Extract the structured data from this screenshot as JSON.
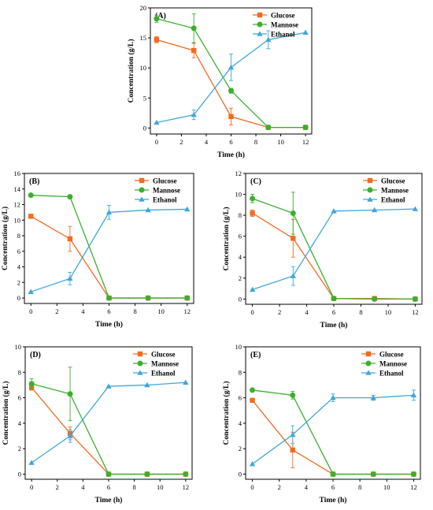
{
  "chart_data": [
    {
      "type": "line",
      "panel_label": "(A)",
      "xlabel": "Time (h)",
      "ylabel": "Concentration (g/L)",
      "xlim": [
        -0.5,
        12.5
      ],
      "ylim": [
        -1,
        20
      ],
      "xticks": [
        0,
        2,
        4,
        6,
        8,
        10,
        12
      ],
      "yticks": [
        0,
        5,
        10,
        15,
        20
      ],
      "legend": "top-right",
      "x": [
        0,
        3,
        6,
        9,
        12
      ],
      "series": [
        {
          "name": "Glucose",
          "color": "#f26b21",
          "marker": "square",
          "values": [
            14.7,
            12.9,
            1.9,
            0.1,
            0.1
          ],
          "errors": [
            0.5,
            1.2,
            1.4,
            0.1,
            0.1
          ]
        },
        {
          "name": "Mannose",
          "color": "#3ab02d",
          "marker": "circle",
          "values": [
            18.2,
            16.6,
            6.2,
            0.1,
            0.1
          ],
          "errors": [
            0.6,
            2.4,
            0.4,
            0.1,
            0.1
          ]
        },
        {
          "name": "Ethanol",
          "color": "#3ea7dc",
          "marker": "triangle",
          "values": [
            0.9,
            2.2,
            10.1,
            14.7,
            15.9
          ],
          "errors": [
            0.1,
            0.8,
            2.2,
            1.5,
            0.1
          ]
        }
      ]
    },
    {
      "type": "line",
      "panel_label": "(B)",
      "xlabel": "Time (h)",
      "ylabel": "Concentration (g/L)",
      "xlim": [
        -0.5,
        12.5
      ],
      "ylim": [
        -0.7,
        16
      ],
      "xticks": [
        0,
        2,
        4,
        6,
        8,
        10,
        12
      ],
      "yticks": [
        0,
        2,
        4,
        6,
        8,
        10,
        12,
        14,
        16
      ],
      "legend": "top-right",
      "x": [
        0,
        3,
        6,
        9,
        12
      ],
      "series": [
        {
          "name": "Glucose",
          "color": "#f26b21",
          "marker": "square",
          "values": [
            10.5,
            7.6,
            0.0,
            0.0,
            0.0
          ],
          "errors": [
            0.1,
            1.6,
            0.1,
            0.1,
            0.1
          ]
        },
        {
          "name": "Mannose",
          "color": "#3ab02d",
          "marker": "circle",
          "values": [
            13.2,
            13.0,
            0.0,
            0.0,
            0.0
          ],
          "errors": [
            0.1,
            0.1,
            0.1,
            0.1,
            0.1
          ]
        },
        {
          "name": "Ethanol",
          "color": "#3ea7dc",
          "marker": "triangle",
          "values": [
            0.8,
            2.5,
            11.0,
            11.3,
            11.4
          ],
          "errors": [
            0.1,
            0.8,
            0.9,
            0.1,
            0.1
          ]
        }
      ]
    },
    {
      "type": "line",
      "panel_label": "(C)",
      "xlabel": "Time (h)",
      "ylabel": "Concentration (g/L)",
      "xlim": [
        -0.5,
        12.5
      ],
      "ylim": [
        -0.5,
        12
      ],
      "xticks": [
        0,
        2,
        4,
        6,
        8,
        10,
        12
      ],
      "yticks": [
        0,
        2,
        4,
        6,
        8,
        10,
        12
      ],
      "legend": "top-right",
      "x": [
        0,
        3,
        6,
        9,
        12
      ],
      "series": [
        {
          "name": "Glucose",
          "color": "#f26b21",
          "marker": "square",
          "values": [
            8.2,
            5.8,
            0.05,
            0.05,
            0.0
          ],
          "errors": [
            0.3,
            1.8,
            0.1,
            0.1,
            0.05
          ]
        },
        {
          "name": "Mannose",
          "color": "#3ab02d",
          "marker": "circle",
          "values": [
            9.6,
            8.2,
            0.05,
            0.0,
            0.0
          ],
          "errors": [
            0.4,
            2.0,
            0.1,
            0.05,
            0.05
          ]
        },
        {
          "name": "Ethanol",
          "color": "#3ea7dc",
          "marker": "triangle",
          "values": [
            0.9,
            2.2,
            8.4,
            8.5,
            8.6
          ],
          "errors": [
            0.05,
            0.9,
            0.05,
            0.05,
            0.05
          ]
        }
      ]
    },
    {
      "type": "line",
      "panel_label": "(D)",
      "xlabel": "Time (h)",
      "ylabel": "Concentration (g/L)",
      "xlim": [
        -0.5,
        12.5
      ],
      "ylim": [
        -0.4,
        10
      ],
      "xticks": [
        0,
        2,
        4,
        6,
        8,
        10,
        12
      ],
      "yticks": [
        0,
        2,
        4,
        6,
        8,
        10
      ],
      "legend": "top-right",
      "x": [
        0,
        3,
        6,
        9,
        12
      ],
      "series": [
        {
          "name": "Glucose",
          "color": "#f26b21",
          "marker": "square",
          "values": [
            6.8,
            3.2,
            0.0,
            0.0,
            0.0
          ],
          "errors": [
            0.2,
            0.5,
            0.05,
            0.05,
            0.05
          ]
        },
        {
          "name": "Mannose",
          "color": "#3ab02d",
          "marker": "circle",
          "values": [
            7.1,
            6.3,
            0.0,
            0.0,
            0.0
          ],
          "errors": [
            0.4,
            2.1,
            0.05,
            0.05,
            0.05
          ]
        },
        {
          "name": "Ethanol",
          "color": "#3ea7dc",
          "marker": "triangle",
          "values": [
            0.9,
            3.0,
            6.9,
            7.0,
            7.2
          ],
          "errors": [
            0.05,
            0.5,
            0.05,
            0.05,
            0.05
          ]
        }
      ]
    },
    {
      "type": "line",
      "panel_label": "(E)",
      "xlabel": "Time (h)",
      "ylabel": "Concentration (g/L)",
      "xlim": [
        -0.5,
        12.5
      ],
      "ylim": [
        -0.4,
        10
      ],
      "xticks": [
        0,
        2,
        4,
        6,
        8,
        10,
        12
      ],
      "yticks": [
        0,
        2,
        4,
        6,
        8,
        10
      ],
      "legend": "top-right",
      "x": [
        0,
        3,
        6,
        9,
        12
      ],
      "series": [
        {
          "name": "Glucose",
          "color": "#f26b21",
          "marker": "square",
          "values": [
            5.8,
            1.9,
            0.0,
            0.0,
            0.0
          ],
          "errors": [
            0.05,
            1.4,
            0.05,
            0.05,
            0.05
          ]
        },
        {
          "name": "Mannose",
          "color": "#3ab02d",
          "marker": "circle",
          "values": [
            6.6,
            6.2,
            0.0,
            0.0,
            0.0
          ],
          "errors": [
            0.1,
            0.3,
            0.05,
            0.05,
            0.05
          ]
        },
        {
          "name": "Ethanol",
          "color": "#3ea7dc",
          "marker": "triangle",
          "values": [
            0.8,
            3.1,
            6.0,
            6.0,
            6.2
          ],
          "errors": [
            0.05,
            0.7,
            0.3,
            0.2,
            0.4
          ]
        }
      ]
    }
  ]
}
